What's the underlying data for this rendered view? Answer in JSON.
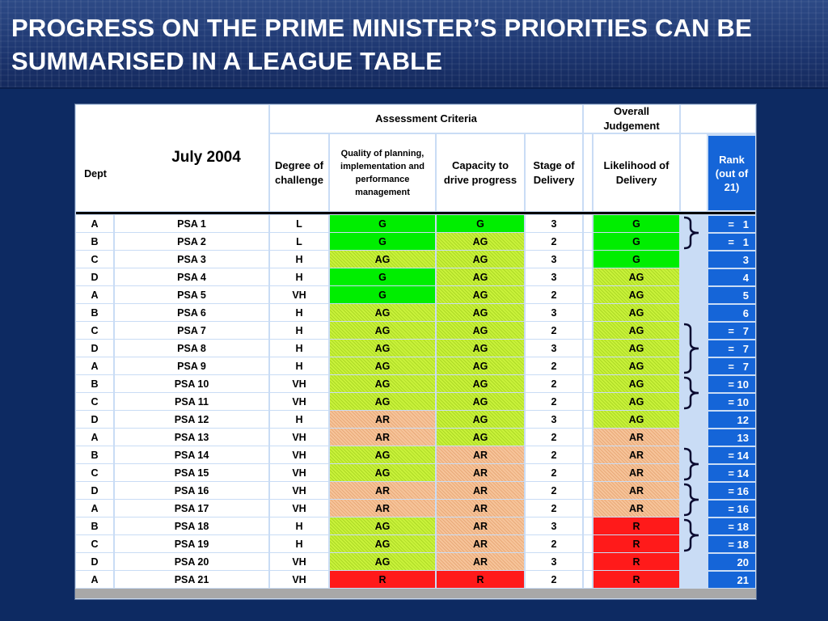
{
  "title": "PROGRESS ON THE PRIME MINISTER’S PRIORITIES CAN BE SUMMARISED IN A LEAGUE TABLE",
  "table": {
    "period": "July 2004",
    "dept_header": "Dept",
    "assessment_header": "Assessment Criteria",
    "overall_header": "Overall Judgement",
    "col_degree": "Degree of challenge",
    "col_quality": "Quality of planning, implementation and performance management",
    "col_capacity": "Capacity to drive progress",
    "col_stage": "Stage of Delivery",
    "col_likelihood": "Likelihood of Delivery",
    "col_rank": "Rank (out of 21)",
    "rows": [
      {
        "dept": "A",
        "psa": "PSA 1",
        "challenge": "L",
        "quality": "G",
        "capacity": "G",
        "stage": "3",
        "likelihood": "G",
        "rank": "=   1"
      },
      {
        "dept": "B",
        "psa": "PSA 2",
        "challenge": "L",
        "quality": "G",
        "capacity": "AG",
        "stage": "2",
        "likelihood": "G",
        "rank": "=   1"
      },
      {
        "dept": "C",
        "psa": "PSA 3",
        "challenge": "H",
        "quality": "AG",
        "capacity": "AG",
        "stage": "3",
        "likelihood": "G",
        "rank": "3"
      },
      {
        "dept": "D",
        "psa": "PSA 4",
        "challenge": "H",
        "quality": "G",
        "capacity": "AG",
        "stage": "3",
        "likelihood": "AG",
        "rank": "4"
      },
      {
        "dept": "A",
        "psa": "PSA 5",
        "challenge": "VH",
        "quality": "G",
        "capacity": "AG",
        "stage": "2",
        "likelihood": "AG",
        "rank": "5"
      },
      {
        "dept": "B",
        "psa": "PSA 6",
        "challenge": "H",
        "quality": "AG",
        "capacity": "AG",
        "stage": "3",
        "likelihood": "AG",
        "rank": "6"
      },
      {
        "dept": "C",
        "psa": "PSA 7",
        "challenge": "H",
        "quality": "AG",
        "capacity": "AG",
        "stage": "2",
        "likelihood": "AG",
        "rank": "=   7"
      },
      {
        "dept": "D",
        "psa": "PSA 8",
        "challenge": "H",
        "quality": "AG",
        "capacity": "AG",
        "stage": "3",
        "likelihood": "AG",
        "rank": "=   7"
      },
      {
        "dept": "A",
        "psa": "PSA 9",
        "challenge": "H",
        "quality": "AG",
        "capacity": "AG",
        "stage": "2",
        "likelihood": "AG",
        "rank": "=   7"
      },
      {
        "dept": "B",
        "psa": "PSA 10",
        "challenge": "VH",
        "quality": "AG",
        "capacity": "AG",
        "stage": "2",
        "likelihood": "AG",
        "rank": "= 10"
      },
      {
        "dept": "C",
        "psa": "PSA 11",
        "challenge": "VH",
        "quality": "AG",
        "capacity": "AG",
        "stage": "2",
        "likelihood": "AG",
        "rank": "= 10"
      },
      {
        "dept": "D",
        "psa": "PSA 12",
        "challenge": "H",
        "quality": "AR",
        "capacity": "AG",
        "stage": "3",
        "likelihood": "AG",
        "rank": "12"
      },
      {
        "dept": "A",
        "psa": "PSA 13",
        "challenge": "VH",
        "quality": "AR",
        "capacity": "AG",
        "stage": "2",
        "likelihood": "AR",
        "rank": "13"
      },
      {
        "dept": "B",
        "psa": "PSA 14",
        "challenge": "VH",
        "quality": "AG",
        "capacity": "AR",
        "stage": "2",
        "likelihood": "AR",
        "rank": "= 14"
      },
      {
        "dept": "C",
        "psa": "PSA 15",
        "challenge": "VH",
        "quality": "AG",
        "capacity": "AR",
        "stage": "2",
        "likelihood": "AR",
        "rank": "= 14"
      },
      {
        "dept": "D",
        "psa": "PSA 16",
        "challenge": "VH",
        "quality": "AR",
        "capacity": "AR",
        "stage": "2",
        "likelihood": "AR",
        "rank": "= 16"
      },
      {
        "dept": "A",
        "psa": "PSA 17",
        "challenge": "VH",
        "quality": "AR",
        "capacity": "AR",
        "stage": "2",
        "likelihood": "AR",
        "rank": "= 16"
      },
      {
        "dept": "B",
        "psa": "PSA 18",
        "challenge": "H",
        "quality": "AG",
        "capacity": "AR",
        "stage": "3",
        "likelihood": "R",
        "rank": "= 18"
      },
      {
        "dept": "C",
        "psa": "PSA 19",
        "challenge": "H",
        "quality": "AG",
        "capacity": "AR",
        "stage": "2",
        "likelihood": "R",
        "rank": "= 18"
      },
      {
        "dept": "D",
        "psa": "PSA 20",
        "challenge": "VH",
        "quality": "AG",
        "capacity": "AR",
        "stage": "3",
        "likelihood": "R",
        "rank": "20"
      },
      {
        "dept": "A",
        "psa": "PSA 21",
        "challenge": "VH",
        "quality": "R",
        "capacity": "R",
        "stage": "2",
        "likelihood": "R",
        "rank": "21"
      }
    ],
    "tie_groups": [
      [
        0,
        1
      ],
      [
        6,
        8
      ],
      [
        9,
        10
      ],
      [
        13,
        14
      ],
      [
        15,
        16
      ],
      [
        17,
        18
      ]
    ],
    "colors": {
      "G": "#00ee00",
      "AG": "#c9f23a",
      "AR": "#f6c49a",
      "R": "#ff1a1a",
      "rank_bg": "#1565d8",
      "board_bg": "#c9dcf5",
      "page_bg": "#0d2a62"
    }
  }
}
